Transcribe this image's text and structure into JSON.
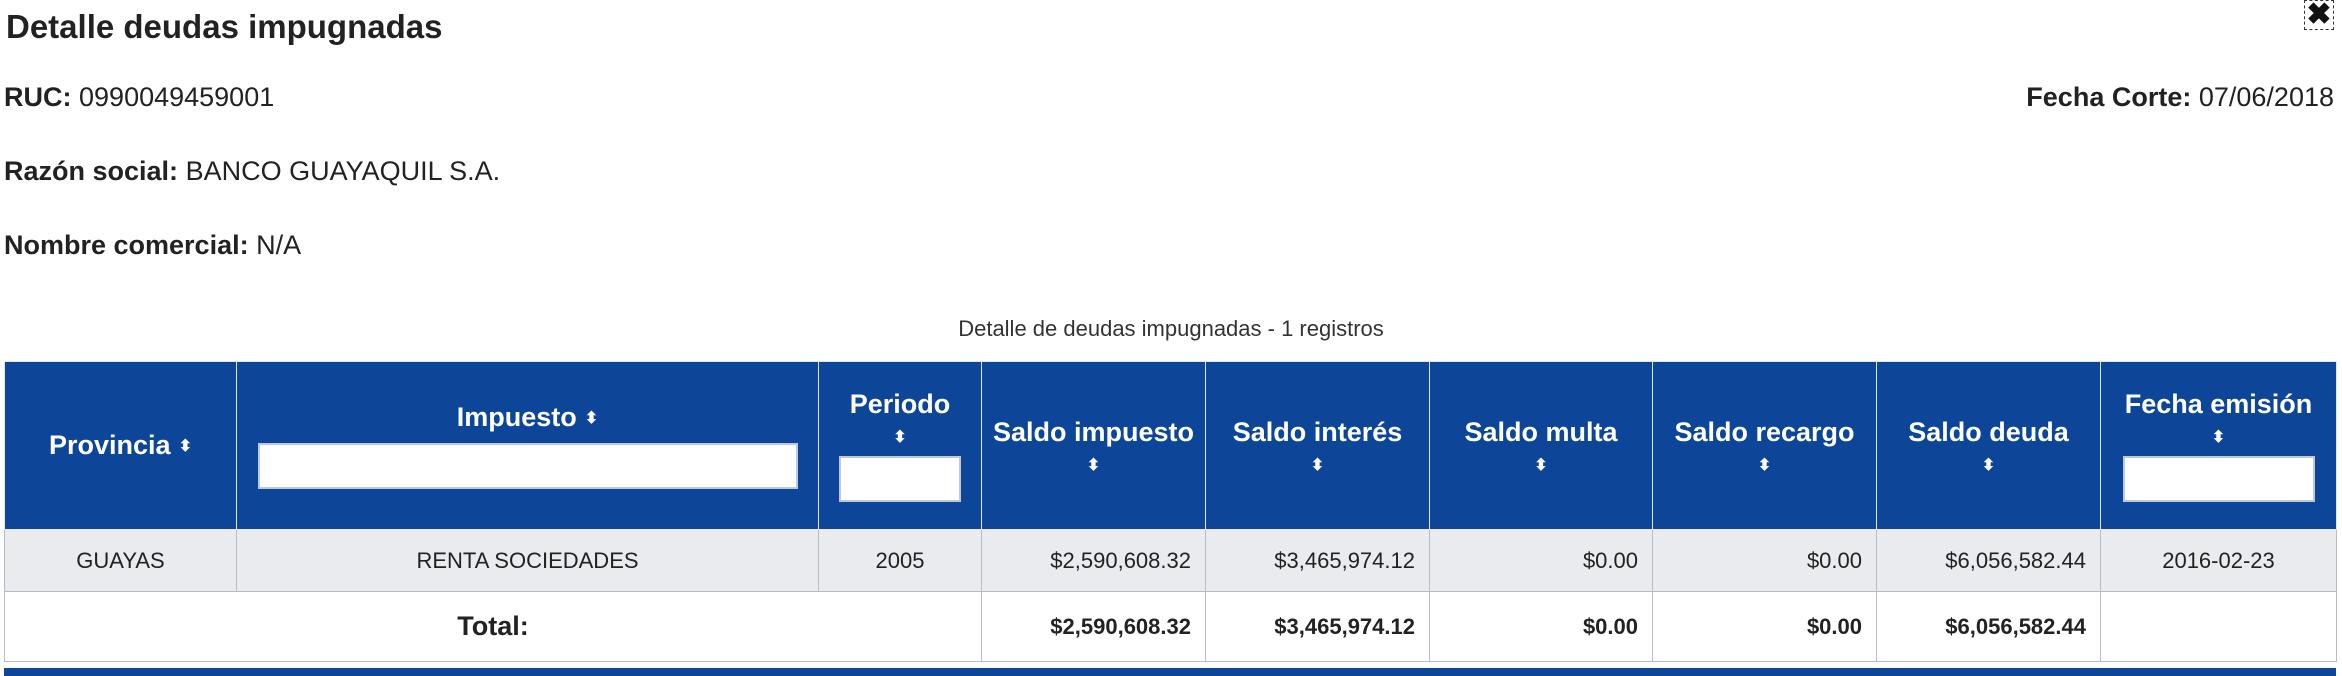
{
  "dialog": {
    "title": "Detalle deudas impugnadas",
    "close_symbol": "✖"
  },
  "info": {
    "ruc_label": "RUC:",
    "ruc_value": "0990049459001",
    "fecha_corte_label": "Fecha Corte:",
    "fecha_corte_value": "07/06/2018",
    "razon_social_label": "Razón social:",
    "razon_social_value": "BANCO GUAYAQUIL S.A.",
    "nombre_comercial_label": "Nombre comercial:",
    "nombre_comercial_value": "N/A"
  },
  "table": {
    "caption": "Detalle de deudas impugnadas - 1 registros",
    "sort_symbol": "⬍",
    "columns": [
      "Provincia",
      "Impuesto",
      "Periodo",
      "Saldo impuesto",
      "Saldo interés",
      "Saldo multa",
      "Saldo recargo",
      "Saldo deuda",
      "Fecha emisión"
    ],
    "rows": [
      [
        "GUAYAS",
        "RENTA SOCIEDADES",
        "2005",
        "$2,590,608.32",
        "$3,465,974.12",
        "$0.00",
        "$0.00",
        "$6,056,582.44",
        "2016-02-23"
      ]
    ],
    "total": {
      "label": "Total:",
      "saldo_impuesto": "$2,590,608.32",
      "saldo_interes": "$3,465,974.12",
      "saldo_multa": "$0.00",
      "saldo_recargo": "$0.00",
      "saldo_deuda": "$6,056,582.44"
    },
    "header_color": "#0d4699"
  }
}
